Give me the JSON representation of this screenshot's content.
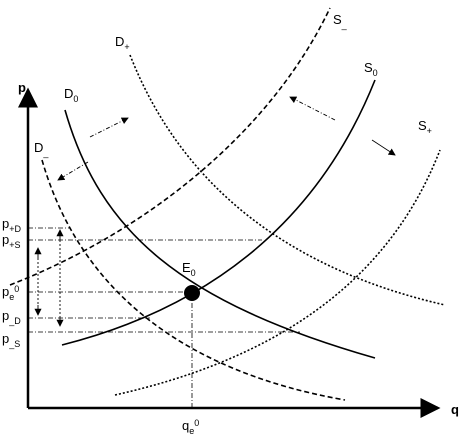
{
  "axes": {
    "y": "p",
    "x": "q"
  },
  "curves": [
    {
      "main": "D",
      "sub": "+"
    },
    {
      "main": "D",
      "sub": "0"
    },
    {
      "main": "D",
      "sub": "_"
    },
    {
      "main": "S",
      "sub": "_"
    },
    {
      "main": "S",
      "sub": "0"
    },
    {
      "main": "S",
      "sub": "+"
    }
  ],
  "equilibrium": {
    "main": "E",
    "sub": "0"
  },
  "price_levels": [
    {
      "main": "p",
      "sub": "+D"
    },
    {
      "main": "p",
      "sub": "+S"
    },
    {
      "main": "p",
      "sub": "e",
      "sup": "0"
    },
    {
      "main": "p",
      "sub": "_D"
    },
    {
      "main": "p",
      "sub": "_S"
    }
  ],
  "quantity_level": {
    "main": "q",
    "sub": "e",
    "sup": "0"
  }
}
